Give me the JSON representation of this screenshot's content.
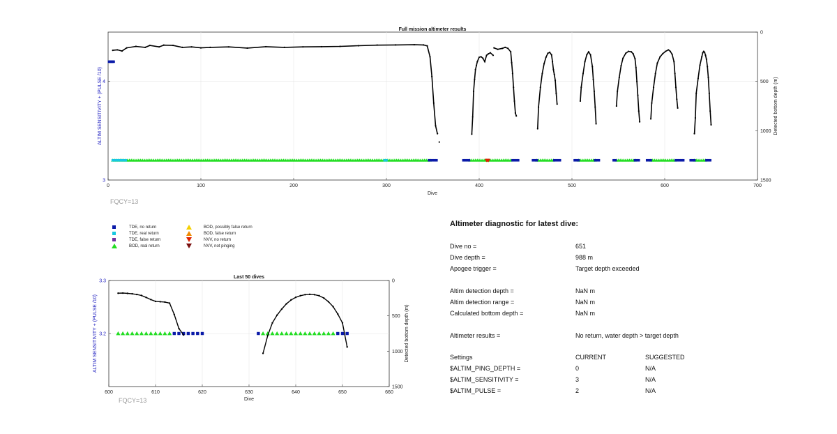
{
  "charts": {
    "main": {
      "title": "Full mission altimeter results",
      "xlabel": "Dive",
      "ylabel_left": "ALTIM SENSITIVITY + (PULSE /10)",
      "ylabel_right": "Detected bottom depth (m)",
      "xticks": [
        "0",
        "100",
        "200",
        "300",
        "400",
        "500",
        "600",
        "700"
      ],
      "yticks_left": [
        "3",
        "4"
      ],
      "yticks_right": [
        "0",
        "500",
        "1000",
        "1500"
      ],
      "fqcy": "FQCY=13"
    },
    "last50": {
      "title": "Last 50 dives",
      "xlabel": "Dive",
      "ylabel_left": "ALTIM SENSITIVITY + (PULSE /10)",
      "ylabel_right": "Detected bottom depth (m)",
      "xticks": [
        "600",
        "610",
        "620",
        "630",
        "640",
        "650",
        "660"
      ],
      "yticks_left": [
        "3.2",
        "3.3"
      ],
      "yticks_right": [
        "0",
        "500",
        "1000",
        "1500"
      ],
      "fqcy": "FQCY=13"
    }
  },
  "legend": [
    {
      "label": "TDE, no return",
      "color": "#0a1aa8",
      "shape": "square"
    },
    {
      "label": "TDE, real return",
      "color": "#18c8e0",
      "shape": "square"
    },
    {
      "label": "TDE, false return",
      "color": "#7030a0",
      "shape": "square"
    },
    {
      "label": "BOD, real return",
      "color": "#22dd22",
      "shape": "triangle-up"
    },
    {
      "label": "BOD, possibly false return",
      "color": "#f5d000",
      "shape": "triangle-up"
    },
    {
      "label": "BOD, false return",
      "color": "#f08a00",
      "shape": "triangle-up"
    },
    {
      "label": "NVV, no return",
      "color": "#dd2200",
      "shape": "triangle-down"
    },
    {
      "label": "NVV, not pinging",
      "color": "#7a1010",
      "shape": "triangle-down"
    }
  ],
  "diagnostic": {
    "title": "Altimeter diagnostic for latest dive:",
    "rows": [
      {
        "label": "Dive no =",
        "value": "651"
      },
      {
        "label": "Dive depth =",
        "value": "988 m"
      },
      {
        "label": "Apogee trigger =",
        "value": "Target depth exceeded"
      },
      {
        "label": "Altim detection depth =",
        "value": "NaN m"
      },
      {
        "label": "Altim detection range =",
        "value": "NaN m"
      },
      {
        "label": "Calculated bottom depth =",
        "value": "NaN m"
      },
      {
        "label": "Altimeter results =",
        "value": "No return, water depth > target depth"
      }
    ],
    "settings_header": {
      "label": "Settings",
      "current": "CURRENT",
      "suggested": "SUGGESTED"
    },
    "settings": [
      {
        "name": "$ALTIM_PING_DEPTH =",
        "current": "0",
        "suggested": "N/A"
      },
      {
        "name": "$ALTIM_SENSITIVITY =",
        "current": "3",
        "suggested": "N/A"
      },
      {
        "name": "$ALTIM_PULSE =",
        "current": "2",
        "suggested": "N/A"
      }
    ]
  },
  "chart_data": [
    {
      "type": "scatter",
      "title": "Full mission altimeter results",
      "xlabel": "Dive",
      "ylabel": "ALTIM SENSITIVITY + (PULSE /10)",
      "ylabel_right": "Detected bottom depth (m)",
      "xlim": [
        0,
        700
      ],
      "ylim": [
        3,
        4.5
      ],
      "ylim_right": [
        1500,
        0
      ],
      "grid": true,
      "series": [
        {
          "name": "TDE, no return",
          "points": [
            [
              1,
              4.2
            ],
            [
              2,
              4.2
            ],
            [
              3,
              4.2
            ],
            [
              4,
              4.2
            ],
            [
              5,
              4.2
            ],
            [
              6,
              4.2
            ]
          ]
        },
        {
          "name": "BOD, real return",
          "runs": [
            [
              5,
              348
            ],
            [
              390,
              435
            ],
            [
              462,
              480
            ],
            [
              507,
              525
            ],
            [
              548,
              568
            ],
            [
              585,
              612
            ],
            [
              632,
              645
            ]
          ],
          "y": 3.2
        },
        {
          "name": "TDE, no return",
          "runs": [
            [
              346,
              354
            ],
            [
              383,
              389
            ],
            [
              436,
              442
            ],
            [
              458,
              462
            ],
            [
              481,
              487
            ],
            [
              503,
              507
            ],
            [
              525,
              530
            ],
            [
              545,
              548
            ],
            [
              568,
              573
            ],
            [
              581,
              585
            ],
            [
              612,
              620
            ],
            [
              628,
              632
            ],
            [
              645,
              650
            ]
          ],
          "y": 3.2
        },
        {
          "name": "TDE, real return",
          "runs": [
            [
              5,
              20
            ],
            [
              298,
              300
            ]
          ],
          "y": 3.2
        },
        {
          "name": "NVV, no return",
          "points": [
            [
              408,
              3.2
            ],
            [
              409,
              3.2
            ],
            [
              410,
              3.2
            ]
          ]
        }
      ],
      "depth_trace": [
        [
          [
            5,
            185
          ],
          [
            10,
            180
          ],
          [
            15,
            192
          ],
          [
            20,
            160
          ],
          [
            30,
            145
          ],
          [
            40,
            155
          ],
          [
            45,
            135
          ],
          [
            55,
            150
          ],
          [
            60,
            132
          ],
          [
            70,
            135
          ],
          [
            80,
            155
          ],
          [
            90,
            150
          ],
          [
            100,
            160
          ],
          [
            110,
            155
          ],
          [
            130,
            150
          ],
          [
            150,
            162
          ],
          [
            170,
            148
          ],
          [
            190,
            155
          ],
          [
            210,
            150
          ],
          [
            230,
            148
          ],
          [
            250,
            145
          ],
          [
            270,
            138
          ],
          [
            290,
            132
          ],
          [
            310,
            130
          ],
          [
            330,
            128
          ],
          [
            340,
            130
          ],
          [
            344,
            140
          ],
          [
            347,
            250
          ],
          [
            349,
            450
          ],
          [
            351,
            720
          ],
          [
            353,
            950
          ],
          [
            355,
            1030
          ]
        ],
        [
          [
            357,
            1115
          ]
        ],
        [
          [
            392,
            1035
          ],
          [
            393,
            860
          ],
          [
            394,
            600
          ],
          [
            395,
            480
          ],
          [
            396,
            380
          ],
          [
            397,
            340
          ],
          [
            398,
            300
          ],
          [
            400,
            255
          ],
          [
            402,
            250
          ],
          [
            404,
            265
          ],
          [
            406,
            300
          ],
          [
            408,
            235
          ],
          [
            410,
            220
          ],
          [
            412,
            210
          ],
          [
            415,
            235
          ]
        ],
        [
          [
            416,
            160
          ],
          [
            420,
            175
          ],
          [
            425,
            165
          ],
          [
            428,
            155
          ],
          [
            431,
            165
          ],
          [
            434,
            200
          ],
          [
            435,
            310
          ],
          [
            436,
            420
          ],
          [
            437,
            560
          ],
          [
            438,
            700
          ],
          [
            439,
            820
          ],
          [
            440,
            850
          ]
        ],
        [
          [
            463,
            980
          ],
          [
            464,
            760
          ],
          [
            466,
            560
          ],
          [
            468,
            420
          ],
          [
            470,
            320
          ],
          [
            472,
            255
          ],
          [
            474,
            215
          ],
          [
            476,
            205
          ],
          [
            478,
            230
          ],
          [
            479,
            300
          ],
          [
            480,
            380
          ],
          [
            481,
            430
          ],
          [
            482,
            490
          ],
          [
            483,
            620
          ],
          [
            484,
            730
          ]
        ],
        [
          [
            509,
            700
          ],
          [
            510,
            560
          ],
          [
            512,
            420
          ],
          [
            514,
            300
          ],
          [
            516,
            230
          ],
          [
            518,
            200
          ],
          [
            520,
            230
          ],
          [
            522,
            350
          ],
          [
            523,
            480
          ],
          [
            524,
            600
          ],
          [
            525,
            760
          ],
          [
            526,
            930
          ]
        ],
        [
          [
            548,
            750
          ],
          [
            549,
            600
          ],
          [
            551,
            460
          ],
          [
            553,
            340
          ],
          [
            555,
            265
          ],
          [
            558,
            215
          ],
          [
            561,
            195
          ],
          [
            564,
            200
          ],
          [
            566,
            220
          ],
          [
            568,
            270
          ],
          [
            569,
            360
          ],
          [
            570,
            500
          ],
          [
            571,
            640
          ],
          [
            572,
            800
          ],
          [
            573,
            910
          ]
        ],
        [
          [
            585,
            880
          ],
          [
            586,
            720
          ],
          [
            588,
            560
          ],
          [
            590,
            420
          ],
          [
            592,
            315
          ],
          [
            595,
            250
          ],
          [
            598,
            218
          ],
          [
            601,
            195
          ],
          [
            604,
            180
          ],
          [
            606,
            195
          ],
          [
            608,
            225
          ],
          [
            610,
            300
          ],
          [
            611,
            420
          ],
          [
            612,
            560
          ],
          [
            613,
            680
          ],
          [
            614,
            770
          ]
        ],
        [
          [
            632,
            1030
          ],
          [
            633,
            870
          ],
          [
            634,
            620
          ],
          [
            636,
            470
          ],
          [
            638,
            335
          ],
          [
            640,
            250
          ],
          [
            641,
            210
          ],
          [
            642,
            195
          ],
          [
            643,
            205
          ],
          [
            644,
            235
          ],
          [
            645,
            275
          ],
          [
            646,
            350
          ],
          [
            647,
            460
          ],
          [
            648,
            620
          ],
          [
            649,
            800
          ],
          [
            650,
            940
          ]
        ]
      ]
    },
    {
      "type": "scatter",
      "title": "Last 50 dives",
      "xlabel": "Dive",
      "ylabel": "ALTIM SENSITIVITY + (PULSE /10)",
      "ylabel_right": "Detected bottom depth (m)",
      "xlim": [
        600,
        660
      ],
      "ylim": [
        3.1,
        3.3
      ],
      "ylim_right": [
        1500,
        0
      ],
      "grid": true,
      "series": [
        {
          "name": "BOD, real return",
          "points": [
            [
              602,
              3.2
            ],
            [
              603,
              3.2
            ],
            [
              604,
              3.2
            ],
            [
              605,
              3.2
            ],
            [
              606,
              3.2
            ],
            [
              607,
              3.2
            ],
            [
              608,
              3.2
            ],
            [
              609,
              3.2
            ],
            [
              610,
              3.2
            ],
            [
              611,
              3.2
            ],
            [
              612,
              3.2
            ],
            [
              613,
              3.2
            ],
            [
              633,
              3.2
            ],
            [
              634,
              3.2
            ],
            [
              635,
              3.2
            ],
            [
              636,
              3.2
            ],
            [
              637,
              3.2
            ],
            [
              638,
              3.2
            ],
            [
              639,
              3.2
            ],
            [
              640,
              3.2
            ],
            [
              641,
              3.2
            ],
            [
              642,
              3.2
            ],
            [
              643,
              3.2
            ],
            [
              644,
              3.2
            ],
            [
              645,
              3.2
            ],
            [
              646,
              3.2
            ],
            [
              647,
              3.2
            ],
            [
              648,
              3.2
            ]
          ]
        },
        {
          "name": "TDE, no return",
          "points": [
            [
              614,
              3.2
            ],
            [
              615,
              3.2
            ],
            [
              616,
              3.2
            ],
            [
              617,
              3.2
            ],
            [
              618,
              3.2
            ],
            [
              619,
              3.2
            ],
            [
              620,
              3.2
            ],
            [
              632,
              3.2
            ],
            [
              649,
              3.2
            ],
            [
              650,
              3.2
            ],
            [
              651,
              3.2
            ]
          ]
        }
      ],
      "depth_trace": [
        [
          [
            602,
            180
          ],
          [
            603,
            178
          ],
          [
            604,
            182
          ],
          [
            605,
            188
          ],
          [
            606,
            198
          ],
          [
            607,
            212
          ],
          [
            608,
            240
          ],
          [
            609,
            270
          ],
          [
            610,
            295
          ],
          [
            611,
            300
          ],
          [
            612,
            305
          ],
          [
            613,
            320
          ],
          [
            614,
            480
          ],
          [
            615,
            680
          ],
          [
            616,
            770
          ]
        ],
        [
          [
            633,
            1030
          ],
          [
            634,
            780
          ],
          [
            635,
            600
          ],
          [
            636,
            490
          ],
          [
            637,
            405
          ],
          [
            638,
            330
          ],
          [
            639,
            275
          ],
          [
            640,
            238
          ],
          [
            641,
            215
          ],
          [
            642,
            200
          ],
          [
            643,
            196
          ],
          [
            644,
            200
          ],
          [
            645,
            215
          ],
          [
            646,
            248
          ],
          [
            647,
            300
          ],
          [
            648,
            370
          ],
          [
            649,
            475
          ],
          [
            650,
            600
          ],
          [
            651,
            940
          ]
        ]
      ]
    }
  ]
}
